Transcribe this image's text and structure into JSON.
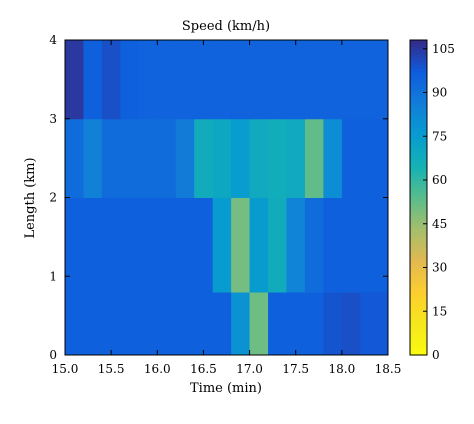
{
  "chart_data": {
    "type": "heatmap",
    "title": "Speed (km/h)",
    "xlabel": "Time (min)",
    "ylabel": "Length (km)",
    "xlim": [
      15.0,
      18.5
    ],
    "ylim": [
      0,
      4
    ],
    "x_ticks": [
      "15.0",
      "15.5",
      "16.0",
      "16.5",
      "17.0",
      "17.5",
      "18.0",
      "18.5"
    ],
    "y_ticks": [
      "0",
      "1",
      "2",
      "3",
      "4"
    ],
    "x_edges": [
      15.0,
      15.2,
      15.4,
      15.6,
      15.8,
      16.0,
      16.2,
      16.4,
      16.6,
      16.8,
      17.0,
      17.2,
      17.4,
      17.6,
      17.8,
      18.0,
      18.2,
      18.5
    ],
    "y_edges": [
      0,
      0.8,
      2.0,
      3.0,
      4.0
    ],
    "values": [
      [
        96,
        96,
        96,
        96,
        96,
        96,
        96,
        96,
        96,
        79,
        51,
        96,
        96,
        96,
        99,
        100,
        98
      ],
      [
        96,
        96,
        96,
        96,
        96,
        96,
        96,
        96,
        76,
        50,
        76,
        68,
        84,
        92,
        96,
        96,
        96
      ],
      [
        92,
        85,
        92,
        92,
        92,
        92,
        87,
        68,
        70,
        75,
        69,
        67,
        69,
        53,
        81,
        96,
        96
      ],
      [
        105,
        96,
        100,
        96,
        95,
        95,
        95,
        95,
        95,
        95,
        95,
        95,
        95,
        95,
        95,
        95,
        95
      ]
    ],
    "colorbar": {
      "min": 0,
      "max": 108,
      "ticks": [
        "0",
        "15",
        "30",
        "45",
        "60",
        "75",
        "90",
        "105"
      ],
      "colormap": "parula"
    },
    "grid": false,
    "legend": "colorbar-right"
  }
}
